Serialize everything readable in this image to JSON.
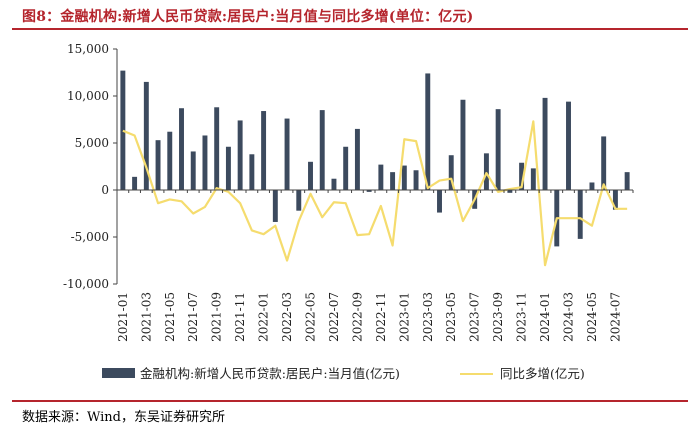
{
  "title": "图8：金融机构:新增人民币贷款:居民户:当月值与同比多增(单位：亿元)",
  "source": "数据来源：Wind，东吴证券研究所",
  "chart_data": {
    "type": "bar",
    "title": "金融机构:新增人民币贷款:居民户:当月值与同比多增(单位：亿元)",
    "unit": "亿元",
    "xlabel": "",
    "ylabel": "",
    "ylim": [
      -10000,
      15000
    ],
    "yticks": [
      -10000,
      -5000,
      0,
      5000,
      10000,
      15000
    ],
    "ytick_labels": [
      "-10,000",
      "-5,000",
      "0",
      "5,000",
      "10,000",
      "15,000"
    ],
    "grid": false,
    "legend_position": "bottom",
    "categories": [
      "2021-01",
      "2021-02",
      "2021-03",
      "2021-04",
      "2021-05",
      "2021-06",
      "2021-07",
      "2021-08",
      "2021-09",
      "2021-10",
      "2021-11",
      "2021-12",
      "2022-01",
      "2022-02",
      "2022-03",
      "2022-04",
      "2022-05",
      "2022-06",
      "2022-07",
      "2022-08",
      "2022-09",
      "2022-10",
      "2022-11",
      "2022-12",
      "2023-01",
      "2023-02",
      "2023-03",
      "2023-04",
      "2023-05",
      "2023-06",
      "2023-07",
      "2023-08",
      "2023-09",
      "2023-10",
      "2023-11",
      "2023-12",
      "2024-01",
      "2024-02",
      "2024-03",
      "2024-04",
      "2024-05",
      "2024-06",
      "2024-07",
      "2024-08"
    ],
    "tick_labels": [
      "2021-01",
      "2021-03",
      "2021-05",
      "2021-07",
      "2021-09",
      "2021-11",
      "2022-01",
      "2022-03",
      "2022-05",
      "2022-07",
      "2022-09",
      "2022-11",
      "2023-01",
      "2023-03",
      "2023-05",
      "2023-07",
      "2023-09",
      "2023-11",
      "2024-01",
      "2024-03",
      "2024-05",
      "2024-07"
    ],
    "series": [
      {
        "name": "金融机构:新增人民币贷款:居民户:当月值(亿元)",
        "type": "bar",
        "color": "#3c4a5e",
        "values": [
          12700,
          1400,
          11500,
          5300,
          6200,
          8700,
          4100,
          5800,
          8800,
          4600,
          7400,
          3800,
          8400,
          -3400,
          7600,
          -2200,
          3000,
          8500,
          1200,
          4600,
          6500,
          -200,
          2700,
          1900,
          2600,
          2100,
          12400,
          -2400,
          3700,
          9600,
          -2000,
          3900,
          8600,
          -300,
          2900,
          2300,
          9800,
          -6000,
          9400,
          -5200,
          800,
          5700,
          -2100,
          1900
        ]
      },
      {
        "name": "同比多增(亿元)",
        "type": "line",
        "color": "#f5dc6e",
        "values": [
          6300,
          5800,
          2400,
          -1400,
          -1000,
          -1200,
          -2500,
          -1800,
          200,
          -200,
          -1400,
          -4300,
          -4700,
          -3800,
          -7500,
          -3300,
          -400,
          -2900,
          -1300,
          -1400,
          -4800,
          -4700,
          -1700,
          -5900,
          5400,
          5200,
          200,
          1000,
          1200,
          -3300,
          -1000,
          1800,
          -200,
          100,
          300,
          7300,
          -8000,
          -3000,
          -3000,
          -3000,
          -3800,
          600,
          -2000,
          -2000
        ]
      }
    ]
  }
}
